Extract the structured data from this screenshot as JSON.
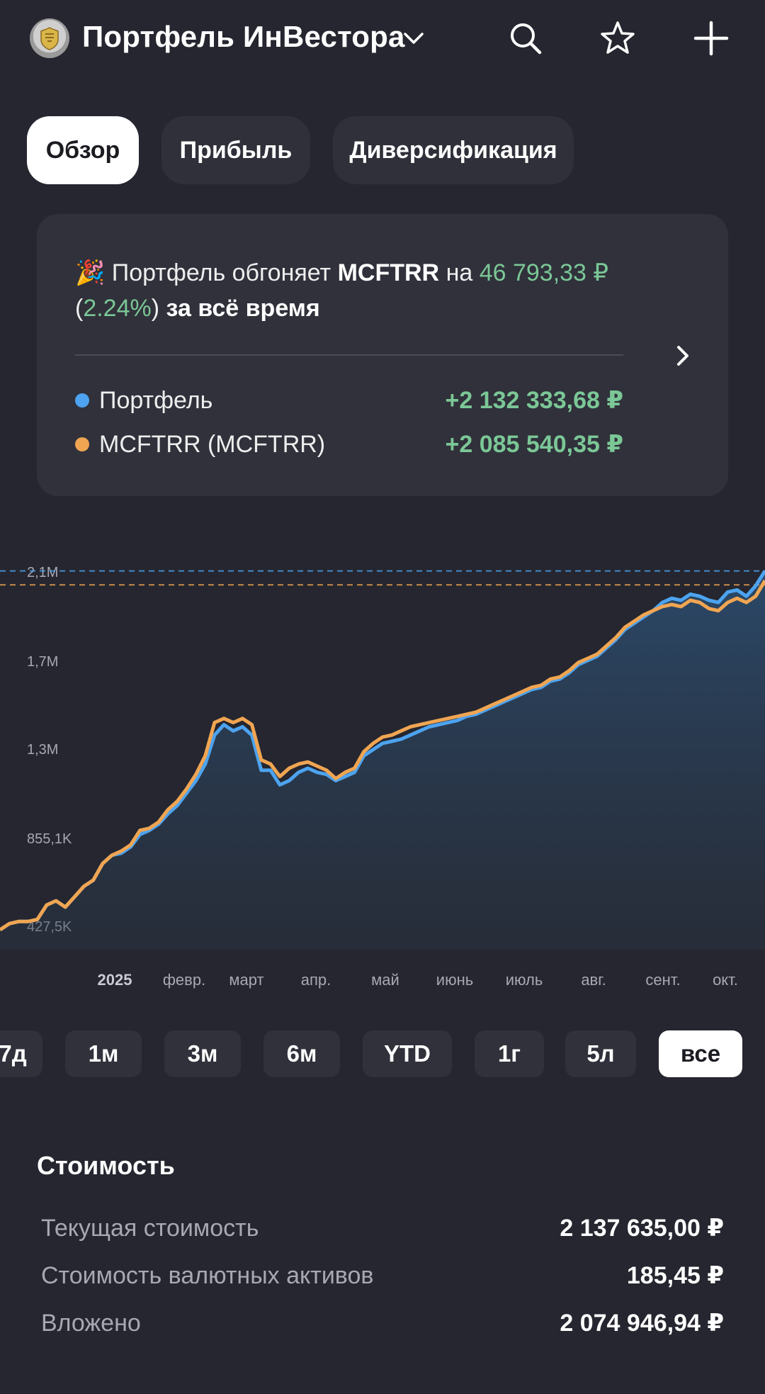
{
  "header": {
    "title": "Портфель ИнВестора",
    "icons": [
      "bank-logo",
      "chevron-down-icon",
      "search-icon",
      "star-icon",
      "plus-icon"
    ]
  },
  "tabs": [
    {
      "label": "Обзор",
      "active": true
    },
    {
      "label": "Прибыль",
      "active": false
    },
    {
      "label": "Диверсификация",
      "active": false
    }
  ],
  "summary": {
    "emoji": "🎉",
    "t1": "Портфель обгоняет",
    "benchmark": "MCFTRR",
    "t2": "на",
    "diff": "46 793,33 ₽",
    "paren_open": "(",
    "pct": "2.24%",
    "paren_close": ")",
    "period": "за всё время",
    "legend": [
      {
        "name": "Портфель",
        "value": "+2 132 333,68 ₽",
        "color": "#4da3ef"
      },
      {
        "name": "MCFTRR (MCFTRR)",
        "value": "+2 085 540,35 ₽",
        "color": "#f0a552"
      }
    ]
  },
  "chart_data": {
    "type": "line",
    "y_ticks": [
      "2,1M",
      "1,7M",
      "1,3M",
      "855,1K",
      "427,5K"
    ],
    "x_ticks": [
      "2025",
      "февр.",
      "март",
      "апр.",
      "май",
      "июнь",
      "июль",
      "авг.",
      "сент.",
      "окт."
    ],
    "ylim": [
      427500,
      2137500
    ],
    "series": [
      {
        "name": "Портфель",
        "color": "#4da3ef",
        "values": [
          400000,
          430000,
          440000,
          440000,
          450000,
          520000,
          540000,
          510000,
          560000,
          610000,
          640000,
          720000,
          760000,
          770000,
          800000,
          860000,
          880000,
          910000,
          960000,
          1000000,
          1060000,
          1120000,
          1200000,
          1340000,
          1390000,
          1360000,
          1380000,
          1340000,
          1170000,
          1170000,
          1100000,
          1120000,
          1160000,
          1180000,
          1160000,
          1150000,
          1120000,
          1140000,
          1160000,
          1240000,
          1270000,
          1300000,
          1310000,
          1320000,
          1340000,
          1360000,
          1380000,
          1390000,
          1400000,
          1410000,
          1430000,
          1440000,
          1460000,
          1480000,
          1500000,
          1520000,
          1540000,
          1560000,
          1570000,
          1600000,
          1610000,
          1640000,
          1680000,
          1700000,
          1720000,
          1760000,
          1800000,
          1850000,
          1880000,
          1910000,
          1940000,
          1980000,
          2000000,
          1990000,
          2020000,
          2010000,
          1990000,
          1980000,
          2030000,
          2040000,
          2010000,
          2060000,
          2132000
        ],
        "note": "approximate, read off chart"
      },
      {
        "name": "MCFTRR (MCFTRR)",
        "color": "#f0a552",
        "values": [
          400000,
          430000,
          440000,
          440000,
          450000,
          520000,
          540000,
          510000,
          560000,
          610000,
          640000,
          720000,
          760000,
          780000,
          810000,
          880000,
          890000,
          920000,
          980000,
          1020000,
          1080000,
          1150000,
          1240000,
          1400000,
          1420000,
          1400000,
          1420000,
          1390000,
          1220000,
          1200000,
          1140000,
          1180000,
          1200000,
          1210000,
          1190000,
          1170000,
          1130000,
          1160000,
          1180000,
          1260000,
          1300000,
          1330000,
          1340000,
          1360000,
          1380000,
          1390000,
          1400000,
          1410000,
          1420000,
          1430000,
          1440000,
          1450000,
          1470000,
          1490000,
          1510000,
          1530000,
          1550000,
          1570000,
          1580000,
          1610000,
          1620000,
          1650000,
          1690000,
          1710000,
          1730000,
          1770000,
          1810000,
          1860000,
          1890000,
          1920000,
          1940000,
          1960000,
          1970000,
          1960000,
          1990000,
          1980000,
          1950000,
          1940000,
          1980000,
          2000000,
          1980000,
          2010000,
          2085540
        ],
        "note": "approximate, read off chart"
      }
    ]
  },
  "periods": [
    {
      "label": "7д",
      "active": false
    },
    {
      "label": "1м",
      "active": false
    },
    {
      "label": "3м",
      "active": false
    },
    {
      "label": "6м",
      "active": false
    },
    {
      "label": "YTD",
      "active": false
    },
    {
      "label": "1г",
      "active": false
    },
    {
      "label": "5л",
      "active": false
    },
    {
      "label": "все",
      "active": true
    }
  ],
  "value_section": {
    "title": "Стоимость",
    "rows": [
      {
        "label": "Текущая стоимость",
        "value": "2 137 635,00 ₽"
      },
      {
        "label": "Стоимость валютных активов",
        "value": "185,45 ₽"
      },
      {
        "label": "Вложено",
        "value": "2 074 946,94 ₽"
      }
    ]
  }
}
